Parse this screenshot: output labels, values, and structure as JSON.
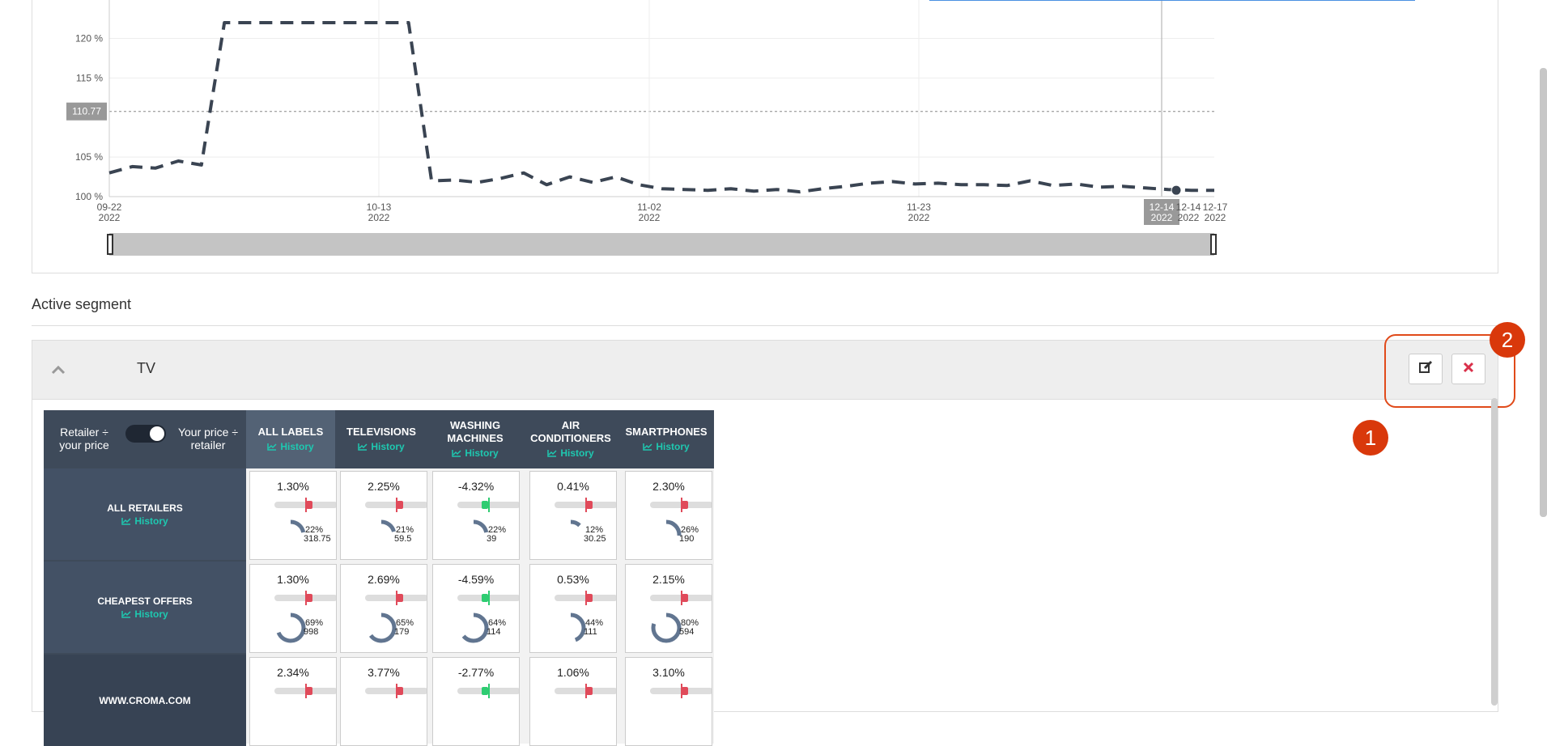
{
  "chart_data": {
    "type": "line",
    "y_ticks": [
      "120 %",
      "115 %",
      "110.77",
      "105 %",
      "100 %"
    ],
    "x_ticks": [
      {
        "date": "09-22",
        "year": "2022"
      },
      {
        "date": "10-13",
        "year": "2022"
      },
      {
        "date": "11-02",
        "year": "2022"
      },
      {
        "date": "11-23",
        "year": "2022"
      },
      {
        "date": "12-14",
        "year": "2022"
      },
      {
        "date": "12-14",
        "year": "2022"
      },
      {
        "date": "12-17",
        "year": "2022"
      }
    ],
    "y_range": [
      100,
      122
    ],
    "reference_line": 110.77,
    "series": [
      {
        "values": [
          103,
          103.8,
          103.6,
          104.5,
          104,
          122,
          122,
          122,
          122,
          122,
          122,
          122,
          122,
          122,
          102,
          102.1,
          101.8,
          102.3,
          103,
          101.5,
          102.5,
          101.8,
          102.5,
          101.5,
          101,
          100.9,
          100.8,
          101,
          100.7,
          100.9,
          100.6,
          101,
          101.3,
          101.7,
          101.9,
          101.6,
          101.7,
          101.5,
          101.5,
          101.4,
          102,
          101.4,
          101.6,
          101.2,
          101.3,
          101.1,
          100.9,
          100.8,
          100.8
        ]
      }
    ],
    "series_color": "#3a4452",
    "grid": true
  },
  "active_segment": {
    "heading": "Active segment",
    "name": "TV",
    "edit_icon": "edit-icon",
    "remove_icon": "close-icon"
  },
  "annotations": {
    "badge_1": "1",
    "badge_2": "2"
  },
  "matrix": {
    "toggle_left": "Retailer ÷ your price",
    "toggle_right": "Your price ÷ retailer",
    "history_label": "History",
    "columns": [
      "ALL LABELS",
      "TELEVISIONS",
      "WASHING MACHINES",
      "AIR CONDITIONERS",
      "SMARTPHONES"
    ],
    "rows": [
      {
        "label": "ALL RETAILERS",
        "history": true,
        "cells": [
          {
            "pct": "1.30%",
            "share": "22%",
            "val": "318.75",
            "dir": "up",
            "ring": 0.22
          },
          {
            "pct": "2.25%",
            "share": "21%",
            "val": "59.5",
            "dir": "up",
            "ring": 0.21
          },
          {
            "pct": "-4.32%",
            "share": "22%",
            "val": "39",
            "dir": "down",
            "ring": 0.22
          },
          {
            "pct": "0.41%",
            "share": "12%",
            "val": "30.25",
            "dir": "up",
            "ring": 0.12
          },
          {
            "pct": "2.30%",
            "share": "26%",
            "val": "190",
            "dir": "up",
            "ring": 0.26
          }
        ]
      },
      {
        "label": "CHEAPEST OFFERS",
        "history": true,
        "cells": [
          {
            "pct": "1.30%",
            "share": "69%",
            "val": "998",
            "dir": "up",
            "ring": 0.69
          },
          {
            "pct": "2.69%",
            "share": "65%",
            "val": "179",
            "dir": "up",
            "ring": 0.65
          },
          {
            "pct": "-4.59%",
            "share": "64%",
            "val": "114",
            "dir": "down",
            "ring": 0.64
          },
          {
            "pct": "0.53%",
            "share": "44%",
            "val": "111",
            "dir": "up",
            "ring": 0.44
          },
          {
            "pct": "2.15%",
            "share": "80%",
            "val": "594",
            "dir": "up",
            "ring": 0.8
          }
        ]
      },
      {
        "label": "WWW.CROMA.COM",
        "history": false,
        "cells": [
          {
            "pct": "2.34%",
            "share": "",
            "val": "",
            "dir": "up",
            "ring": 0
          },
          {
            "pct": "3.77%",
            "share": "",
            "val": "",
            "dir": "up",
            "ring": 0
          },
          {
            "pct": "-2.77%",
            "share": "",
            "val": "",
            "dir": "down",
            "ring": 0
          },
          {
            "pct": "1.06%",
            "share": "",
            "val": "",
            "dir": "up",
            "ring": 0
          },
          {
            "pct": "3.10%",
            "share": "",
            "val": "",
            "dir": "up",
            "ring": 0
          }
        ]
      }
    ]
  },
  "colors": {
    "up": "#e04a5a",
    "down": "#2ecc71",
    "neutral": "#e04a5a",
    "ring": "#617590"
  }
}
